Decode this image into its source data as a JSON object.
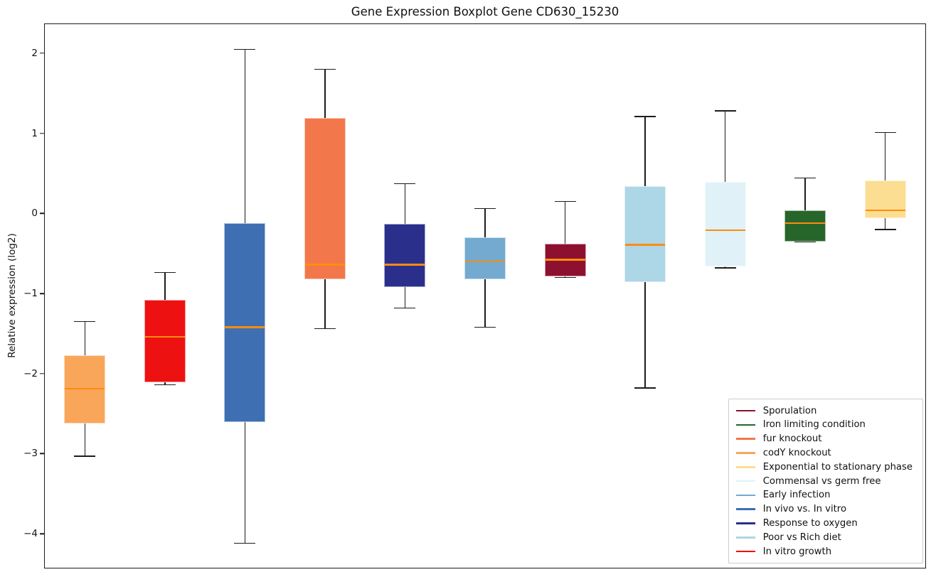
{
  "chart_data": {
    "type": "boxplot",
    "title": "Gene Expression Boxplot Gene CD630_15230",
    "xlabel": "",
    "ylabel": "Relative expression (log2)",
    "ylim": [
      -4.425,
      2.363
    ],
    "grid": false,
    "legend_position": "lower right",
    "median_color": "#FF8C0E",
    "whisker_color": "#1c1c1c",
    "yticks": [
      {
        "v": 2,
        "label": "2"
      },
      {
        "v": 1,
        "label": "1"
      },
      {
        "v": 0,
        "label": "0"
      },
      {
        "v": -1,
        "label": "−1"
      },
      {
        "v": -2,
        "label": "−2"
      },
      {
        "v": -3,
        "label": "−3"
      },
      {
        "v": -4,
        "label": "−4"
      }
    ],
    "series": [
      {
        "label": "codY knockout",
        "color": "#FAA65A",
        "whislo": -3.03,
        "q1": -2.62,
        "med": -2.19,
        "q3": -1.77,
        "whishi": -1.35
      },
      {
        "label": "In vitro growth",
        "color": "#EE1111",
        "whislo": -2.14,
        "q1": -2.11,
        "med": -1.54,
        "q3": -1.08,
        "whishi": -0.74
      },
      {
        "label": "In vivo vs. In vitro",
        "color": "#3D6FB2",
        "whislo": -4.12,
        "q1": -2.61,
        "med": -1.42,
        "q3": -0.12,
        "whishi": 2.05
      },
      {
        "label": "fur knockout",
        "color": "#F2774A",
        "whislo": -1.44,
        "q1": -0.82,
        "med": -0.64,
        "q3": 1.19,
        "whishi": 1.8
      },
      {
        "label": "Response to oxygen",
        "color": "#2B2F8C",
        "whislo": -1.18,
        "q1": -0.92,
        "med": -0.64,
        "q3": -0.13,
        "whishi": 0.37
      },
      {
        "label": "Early infection",
        "color": "#74AACF",
        "whislo": -1.42,
        "q1": -0.82,
        "med": -0.6,
        "q3": -0.3,
        "whishi": 0.06
      },
      {
        "label": "Sporulation",
        "color": "#8E1030",
        "whislo": -0.8,
        "q1": -0.79,
        "med": -0.58,
        "q3": -0.38,
        "whishi": 0.15
      },
      {
        "label": "Poor vs Rich diet",
        "color": "#ADD6E6",
        "whislo": -2.18,
        "q1": -0.86,
        "med": -0.39,
        "q3": 0.34,
        "whishi": 1.21
      },
      {
        "label": "Commensal vs germ free",
        "color": "#E0F2F7",
        "whislo": -0.68,
        "q1": -0.66,
        "med": -0.21,
        "q3": 0.39,
        "whishi": 1.28
      },
      {
        "label": "Iron limiting condition",
        "color": "#27662A",
        "whislo": -0.35,
        "q1": -0.35,
        "med": -0.12,
        "q3": 0.04,
        "whishi": 0.44
      },
      {
        "label": "Exponential to stationary phase",
        "color": "#FBDE92",
        "whislo": -0.2,
        "q1": -0.06,
        "med": 0.04,
        "q3": 0.41,
        "whishi": 1.01
      }
    ],
    "legend": [
      {
        "label": "Sporulation",
        "color": "#8E1030"
      },
      {
        "label": "Iron limiting condition",
        "color": "#27662A"
      },
      {
        "label": "fur knockout",
        "color": "#F2774A"
      },
      {
        "label": "codY knockout",
        "color": "#FAA65A"
      },
      {
        "label": "Exponential to stationary phase",
        "color": "#FBDE92"
      },
      {
        "label": "Commensal vs germ free",
        "color": "#E0F2F7"
      },
      {
        "label": "Early infection",
        "color": "#74AACF"
      },
      {
        "label": "In vivo vs. In vitro",
        "color": "#3D6FB2"
      },
      {
        "label": "Response to oxygen",
        "color": "#2B2F8C"
      },
      {
        "label": "Poor vs Rich diet",
        "color": "#ADD6E6"
      },
      {
        "label": "In vitro growth",
        "color": "#EE1111"
      }
    ]
  }
}
